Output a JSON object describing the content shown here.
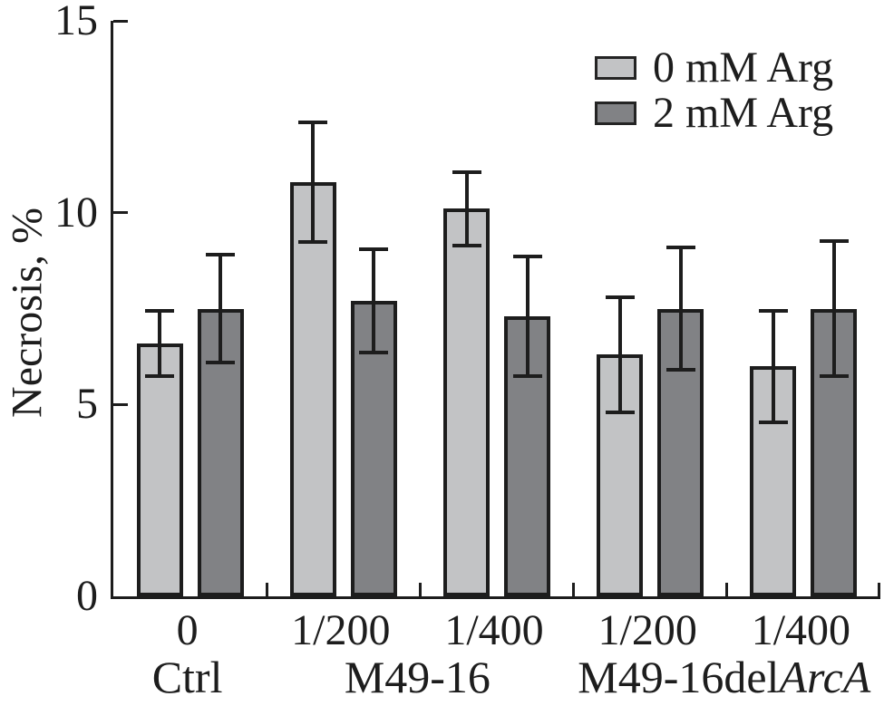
{
  "chart_data": {
    "type": "bar",
    "title": "",
    "ylabel": "Necrosis, %",
    "xlabel": "",
    "ylim": [
      0,
      15
    ],
    "yticks": [
      0,
      5,
      10,
      15
    ],
    "ytick_labels": [
      "0",
      "5",
      "10",
      "15"
    ],
    "grid": false,
    "legend_position": "top-right",
    "categories": [
      "0",
      "1/200",
      "1/400",
      "1/200",
      "1/400"
    ],
    "group_labels": [
      {
        "text": "Ctrl",
        "italic": "",
        "span_start": 0,
        "span_end": 1
      },
      {
        "text": "M49-16",
        "italic": "",
        "span_start": 1,
        "span_end": 3
      },
      {
        "text": "M49-16del",
        "italic": "ArcA",
        "span_start": 3,
        "span_end": 5
      }
    ],
    "series": [
      {
        "name": "0 mM Arg",
        "color": "#c2c3c5",
        "values": [
          6.6,
          10.8,
          10.1,
          6.3,
          6.0
        ],
        "errors": [
          0.9,
          1.6,
          1.0,
          1.55,
          1.5
        ]
      },
      {
        "name": "2 mM Arg",
        "color": "#818285",
        "values": [
          7.5,
          7.7,
          7.3,
          7.5,
          7.5
        ],
        "errors": [
          1.45,
          1.4,
          1.6,
          1.65,
          1.8
        ]
      }
    ]
  },
  "colors": {
    "axis": "#1d1d1d",
    "bar_border": "#1d1d1d",
    "error_bar": "#1d1d1d",
    "background": "#ffffff",
    "series_light": "#c2c3c5",
    "series_dark": "#818285"
  }
}
